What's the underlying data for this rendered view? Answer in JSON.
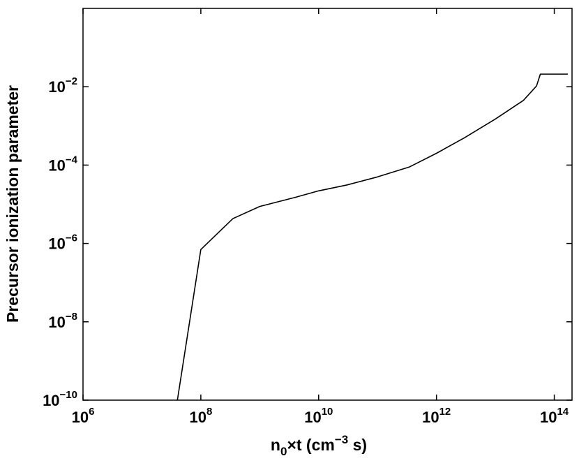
{
  "chart_data": {
    "type": "line",
    "xscale": "log",
    "yscale": "log",
    "xlim": [
      1000000,
      200000000000000
    ],
    "ylim": [
      1e-10,
      1
    ],
    "grid": false,
    "legend": "none",
    "xlabel": {
      "prefix": "n",
      "subscript": "0",
      "mid": "×t (cm",
      "superscript": "−3",
      "suffix": " s)"
    },
    "ylabel": "Precursor ionization parameter",
    "x_ticks": [
      {
        "value": 1000000,
        "base": "10",
        "exp": "6"
      },
      {
        "value": 100000000,
        "base": "10",
        "exp": "8"
      },
      {
        "value": 10000000000,
        "base": "10",
        "exp": "10"
      },
      {
        "value": 1000000000000,
        "base": "10",
        "exp": "12"
      },
      {
        "value": 100000000000000,
        "base": "10",
        "exp": "14"
      }
    ],
    "y_ticks": [
      {
        "value": 1e-10,
        "base": "10",
        "exp": "−10"
      },
      {
        "value": 1e-08,
        "base": "10",
        "exp": "−8"
      },
      {
        "value": 1e-06,
        "base": "10",
        "exp": "−6"
      },
      {
        "value": 0.0001,
        "base": "10",
        "exp": "−4"
      },
      {
        "value": 0.01,
        "base": "10",
        "exp": "−2"
      }
    ],
    "series": [
      {
        "color": "#000000",
        "x": [
          40000000,
          100000000,
          350000000,
          1000000000,
          4000000000,
          10000000000,
          30000000000,
          100000000000,
          350000000000,
          1000000000000,
          3000000000000,
          10000000000000,
          30000000000000,
          50000000000000,
          58000000000000,
          170000000000000
        ],
        "y": [
          1e-10,
          7e-07,
          4.3e-06,
          8.8e-06,
          1.5e-05,
          2.2e-05,
          3.1e-05,
          5e-05,
          9e-05,
          0.0002,
          0.0005,
          0.0015,
          0.0045,
          0.0105,
          0.021,
          0.021
        ]
      }
    ]
  }
}
